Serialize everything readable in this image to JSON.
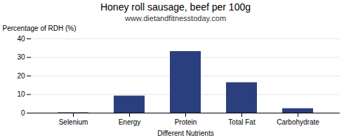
{
  "chart_data": {
    "type": "bar",
    "title": "Honey roll sausage, beef per 100g",
    "subtitle": "www.dietandfitnesstoday.com",
    "xlabel": "Different Nutrients",
    "ylabel": "Percentage of RDH (%)",
    "categories": [
      "Selenium",
      "Energy",
      "Protein",
      "Total Fat",
      "Carbohydrate"
    ],
    "values": [
      0.2,
      9.2,
      33.2,
      16.4,
      2.4
    ],
    "color": "#2b3f7e",
    "ylim": [
      0,
      40
    ],
    "yticks": [
      0,
      10,
      20,
      30,
      40
    ],
    "grid": true
  }
}
